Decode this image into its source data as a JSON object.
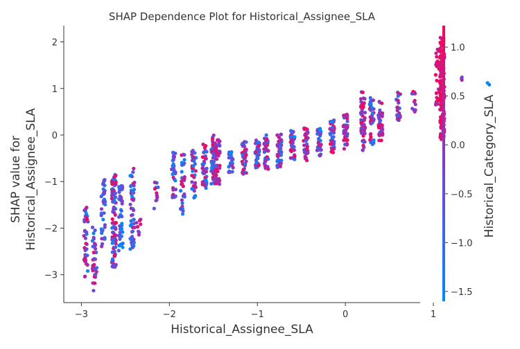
{
  "chart_data": {
    "type": "scatter",
    "title": "SHAP Dependence Plot for Historical_Assignee_SLA",
    "xlabel": "Historical_Assignee_SLA",
    "ylabel_lines": [
      "SHAP value for",
      "Historical_Assignee_SLA"
    ],
    "xlim": [
      -3.2,
      0.85
    ],
    "ylim": [
      -3.6,
      2.35
    ],
    "x_ticks": [
      -3,
      -2,
      -1,
      0,
      1
    ],
    "x_tick_labels": [
      "−3",
      "−2",
      "−1",
      "0",
      "1"
    ],
    "y_ticks": [
      -3,
      -2,
      -1,
      0,
      1,
      2
    ],
    "y_tick_labels": [
      "−3",
      "−2",
      "−1",
      "0",
      "1",
      "2"
    ],
    "grid": false,
    "colorbar": {
      "label": "Historical_Category_SLA",
      "range": [
        -1.6,
        1.22
      ],
      "ticks": [
        -1.5,
        -1.0,
        -0.5,
        0.0,
        0.5,
        1.0
      ],
      "tick_labels": [
        "−1.5",
        "−1.0",
        "−0.5",
        "0.0",
        "0.5",
        "1.0"
      ],
      "colors": [
        "#008afb",
        "#7d3fd0",
        "#ff0052"
      ]
    },
    "clusters": [
      {
        "x": -2.95,
        "y_min": -3.05,
        "y_max": -1.55,
        "n": 40,
        "c_min": 0.0,
        "c_max": 1.0
      },
      {
        "x": -2.85,
        "y_min": -3.35,
        "y_max": -1.95,
        "n": 35,
        "c_min": 0.0,
        "c_max": 0.9
      },
      {
        "x": -2.75,
        "y_min": -2.4,
        "y_max": -0.95,
        "n": 40,
        "c_min": 0.0,
        "c_max": 0.6
      },
      {
        "x": -2.63,
        "y_min": -2.85,
        "y_max": -0.85,
        "n": 95,
        "c_min": 0.0,
        "c_max": 1.0
      },
      {
        "x": -2.55,
        "y_min": -2.5,
        "y_max": -1.0,
        "n": 40,
        "c_min": 0.0,
        "c_max": 0.6
      },
      {
        "x": -2.42,
        "y_min": -2.45,
        "y_max": -0.6,
        "n": 50,
        "c_min": 0.0,
        "c_max": 0.8
      },
      {
        "x": -2.35,
        "y_min": -2.2,
        "y_max": -1.8,
        "n": 8,
        "c_min": 0.3,
        "c_max": 0.9
      },
      {
        "x": -2.15,
        "y_min": -1.65,
        "y_max": -1.0,
        "n": 12,
        "c_min": 0.2,
        "c_max": 0.9
      },
      {
        "x": -1.95,
        "y_min": -1.4,
        "y_max": -0.3,
        "n": 30,
        "c_min": 0.0,
        "c_max": 0.8
      },
      {
        "x": -1.85,
        "y_min": -1.7,
        "y_max": -0.35,
        "n": 35,
        "c_min": 0.0,
        "c_max": 0.9
      },
      {
        "x": -1.72,
        "y_min": -1.35,
        "y_max": -0.3,
        "n": 35,
        "c_min": 0.0,
        "c_max": 1.0
      },
      {
        "x": -1.6,
        "y_min": -1.2,
        "y_max": -0.2,
        "n": 40,
        "c_min": 0.0,
        "c_max": 1.0
      },
      {
        "x": -1.5,
        "y_min": -1.05,
        "y_max": 0.0,
        "n": 50,
        "c_min": 0.0,
        "c_max": 0.9
      },
      {
        "x": -1.45,
        "y_min": -1.1,
        "y_max": -0.1,
        "n": 40,
        "c_min": 0.4,
        "c_max": 1.0
      },
      {
        "x": -1.3,
        "y_min": -0.85,
        "y_max": -0.35,
        "n": 25,
        "c_min": 0.0,
        "c_max": 0.8
      },
      {
        "x": -1.15,
        "y_min": -0.85,
        "y_max": -0.1,
        "n": 40,
        "c_min": 0.0,
        "c_max": 1.0
      },
      {
        "x": -1.0,
        "y_min": -0.7,
        "y_max": -0.1,
        "n": 40,
        "c_min": 0.0,
        "c_max": 0.9
      },
      {
        "x": -0.9,
        "y_min": -0.75,
        "y_max": 0.0,
        "n": 40,
        "c_min": 0.2,
        "c_max": 1.0
      },
      {
        "x": -0.75,
        "y_min": -0.7,
        "y_max": 0.05,
        "n": 45,
        "c_min": 0.0,
        "c_max": 0.9
      },
      {
        "x": -0.6,
        "y_min": -0.55,
        "y_max": 0.1,
        "n": 40,
        "c_min": 0.0,
        "c_max": 1.0
      },
      {
        "x": -0.45,
        "y_min": -0.55,
        "y_max": 0.15,
        "n": 40,
        "c_min": 0.3,
        "c_max": 1.0
      },
      {
        "x": -0.3,
        "y_min": -0.5,
        "y_max": 0.15,
        "n": 35,
        "c_min": 0.0,
        "c_max": 0.9
      },
      {
        "x": -0.15,
        "y_min": -0.4,
        "y_max": 0.35,
        "n": 45,
        "c_min": 0.0,
        "c_max": 1.0
      },
      {
        "x": 0.0,
        "y_min": -0.3,
        "y_max": 0.45,
        "n": 40,
        "c_min": 0.2,
        "c_max": 1.0
      },
      {
        "x": 0.2,
        "y_min": -0.35,
        "y_max": 0.95,
        "n": 55,
        "c_min": 0.3,
        "c_max": 1.0
      },
      {
        "x": 0.3,
        "y_min": -0.2,
        "y_max": 0.8,
        "n": 40,
        "c_min": 0.0,
        "c_max": 1.0
      },
      {
        "x": 0.4,
        "y_min": -0.15,
        "y_max": 0.8,
        "n": 40,
        "c_min": 0.3,
        "c_max": 1.0
      },
      {
        "x": 0.6,
        "y_min": 0.3,
        "y_max": 0.95,
        "n": 25,
        "c_min": 0.0,
        "c_max": 0.8
      },
      {
        "x": 0.78,
        "y_min": 0.5,
        "y_max": 0.95,
        "n": 12,
        "c_min": 0.3,
        "c_max": 1.0
      },
      {
        "x": 1.05,
        "y_min": 0.5,
        "y_max": 1.9,
        "n": 25,
        "c_min": 0.6,
        "c_max": 1.0
      },
      {
        "x": 1.1,
        "y_min": -0.15,
        "y_max": 2.1,
        "n": 160,
        "c_min": 0.75,
        "c_max": 1.0
      },
      {
        "x": 1.3,
        "y_min": 1.0,
        "y_max": 1.3,
        "n": 3,
        "c_min": 0.4,
        "c_max": 0.7
      },
      {
        "x": 1.63,
        "y_min": 1.05,
        "y_max": 1.15,
        "n": 2,
        "c_min": 0.0,
        "c_max": 0.1
      }
    ]
  }
}
